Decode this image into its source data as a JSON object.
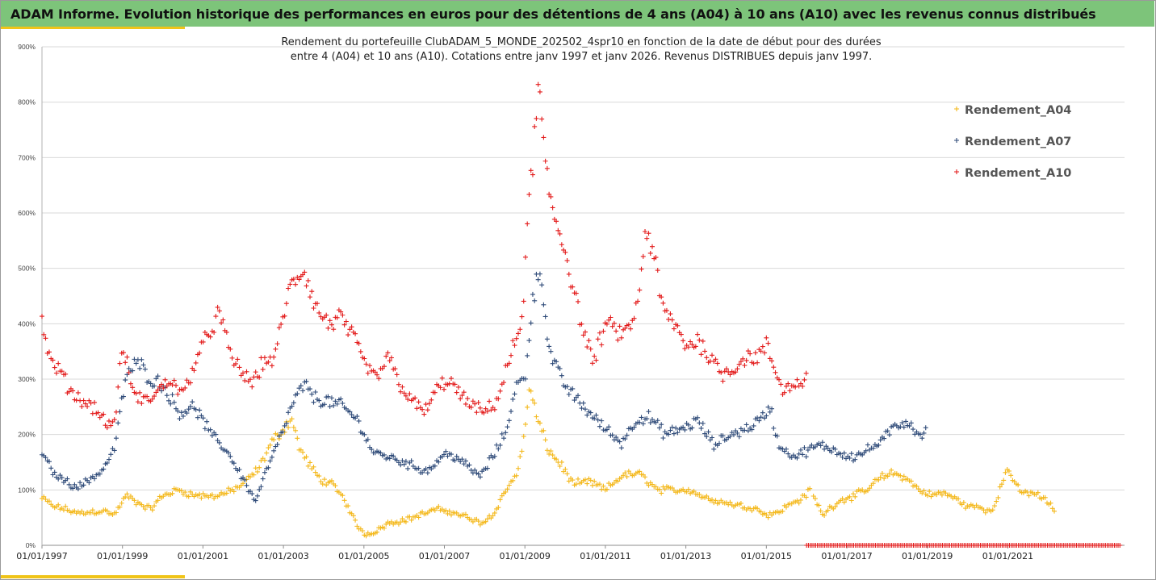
{
  "header": {
    "title": "ADAM Informe. Evolution historique des performances en euros pour des détentions de 4 ans (A04) à 10 ans (A10) avec les revenus connus distribués"
  },
  "colors": {
    "header_bg": "#7dc47a",
    "accent": "#f0c419",
    "a04": "#f4b81a",
    "a07": "#2e4a78",
    "a10": "#e31b1b"
  },
  "chart_data": {
    "type": "scatter",
    "title_line1": "Rendement du portefeuille ClubADAM_5_MONDE_202502_4spr10  en fonction de la date de début pour des durées",
    "title_line2": "entre 4 (A04) et 10 ans (A10). Cotations entre janv 1997 et janv 2026. Revenus DISTRIBUES depuis janv 1997.",
    "xlabel": "",
    "ylabel": "",
    "xlim": [
      1997.0,
      2023.9
    ],
    "ylim": [
      0,
      900
    ],
    "y_ticks": [
      0,
      100,
      200,
      300,
      400,
      500,
      600,
      700,
      800,
      900
    ],
    "y_tick_labels": [
      "0%",
      "100%",
      "200%",
      "300%",
      "400%",
      "500%",
      "600%",
      "700%",
      "800%",
      "900%"
    ],
    "x_ticks": [
      1997,
      1999,
      2001,
      2003,
      2005,
      2007,
      2009,
      2011,
      2013,
      2015,
      2017,
      2019,
      2021
    ],
    "x_tick_labels": [
      "01/01/1997",
      "01/01/1999",
      "01/01/2001",
      "01/01/2003",
      "01/01/2005",
      "01/01/2007",
      "01/01/2009",
      "01/01/2011",
      "01/01/2013",
      "01/01/2015",
      "01/01/2017",
      "01/01/2019",
      "01/01/2021"
    ],
    "legend_position": "right",
    "grid": "horizontal",
    "marker": "+",
    "series": [
      {
        "name": "Rendement_A04",
        "color": "#f4b81a",
        "x": [
          1997.0,
          1997.3,
          1997.6,
          1997.9,
          1998.2,
          1998.5,
          1998.8,
          1999.1,
          1999.4,
          1999.7,
          2000.0,
          2000.4,
          2000.8,
          2001.2,
          2001.6,
          2002.0,
          2002.4,
          2002.7,
          2003.0,
          2003.2,
          2003.4,
          2003.6,
          2003.9,
          2004.2,
          2004.5,
          2004.8,
          2005.0,
          2005.3,
          2005.6,
          2006.0,
          2006.4,
          2006.8,
          2007.2,
          2007.6,
          2007.9,
          2008.2,
          2008.5,
          2008.8,
          2009.0,
          2009.1,
          2009.3,
          2009.6,
          2009.9,
          2010.2,
          2010.6,
          2011.0,
          2011.4,
          2011.8,
          2012.0,
          2012.3,
          2012.7,
          2013.1,
          2013.5,
          2013.9,
          2014.3,
          2014.7,
          2015.0,
          2015.3,
          2015.6,
          2015.9,
          2016.1,
          2016.4,
          2016.8,
          2017.2,
          2017.5,
          2017.8,
          2018.1,
          2018.4,
          2018.8,
          2019.1,
          2019.4,
          2019.8,
          2020.0,
          2020.2,
          2020.4,
          2020.6,
          2021.0,
          2021.3,
          2021.6,
          2021.9,
          2022.2
        ],
        "values": [
          85,
          70,
          65,
          58,
          60,
          63,
          55,
          90,
          75,
          65,
          90,
          100,
          90,
          88,
          95,
          110,
          140,
          185,
          210,
          230,
          175,
          150,
          120,
          110,
          85,
          40,
          20,
          25,
          40,
          45,
          55,
          65,
          60,
          50,
          40,
          55,
          95,
          130,
          200,
          290,
          230,
          170,
          145,
          110,
          115,
          100,
          125,
          130,
          120,
          100,
          100,
          100,
          85,
          78,
          72,
          68,
          55,
          60,
          75,
          85,
          100,
          55,
          80,
          90,
          100,
          120,
          130,
          125,
          100,
          90,
          95,
          80,
          70,
          70,
          65,
          60,
          140,
          95,
          95,
          85,
          60
        ],
        "gap_after": [
          60,
          75
        ]
      },
      {
        "name": "Rendement_A07",
        "color": "#2e4a78",
        "x": [
          1997.0,
          1997.3,
          1997.6,
          1997.9,
          1998.2,
          1998.5,
          1998.8,
          1999.1,
          1999.4,
          1999.7,
          2000.0,
          2000.4,
          2000.8,
          2001.2,
          2001.6,
          2002.0,
          2002.3,
          2002.6,
          2002.9,
          2003.2,
          2003.5,
          2003.8,
          2004.1,
          2004.5,
          2004.9,
          2005.2,
          2005.6,
          2006.0,
          2006.3,
          2006.6,
          2007.0,
          2007.3,
          2007.6,
          2007.9,
          2008.2,
          2008.5,
          2008.8,
          2009.0,
          2009.2,
          2009.4,
          2009.6,
          2009.9,
          2010.2,
          2010.6,
          2011.0,
          2011.4,
          2011.8,
          2012.1,
          2012.5,
          2012.9,
          2013.3,
          2013.7,
          2014.1,
          2014.5,
          2014.9,
          2015.1,
          2015.3,
          2015.7,
          2016.0,
          2016.3,
          2016.6,
          2016.9,
          2017.2,
          2017.6,
          2017.9,
          2018.2,
          2018.5,
          2018.8,
          2019.0
        ],
        "values": [
          165,
          130,
          115,
          105,
          120,
          135,
          175,
          310,
          330,
          300,
          290,
          240,
          250,
          200,
          170,
          120,
          80,
          140,
          190,
          250,
          290,
          265,
          260,
          250,
          220,
          170,
          160,
          150,
          140,
          135,
          165,
          160,
          140,
          125,
          160,
          200,
          290,
          300,
          450,
          500,
          350,
          300,
          270,
          240,
          210,
          185,
          230,
          230,
          200,
          210,
          225,
          180,
          200,
          210,
          230,
          250,
          180,
          160,
          170,
          180,
          175,
          165,
          160,
          175,
          190,
          215,
          225,
          200,
          205
        ]
      },
      {
        "name": "Rendement_A10",
        "color": "#e31b1b",
        "x": [
          1997.0,
          1997.2,
          1997.4,
          1997.7,
          1998.0,
          1998.3,
          1998.6,
          1998.8,
          1999.0,
          1999.3,
          1999.6,
          1999.9,
          2000.2,
          2000.5,
          2000.8,
          2001.0,
          2001.2,
          2001.4,
          2001.7,
          2002.0,
          2002.2,
          2002.5,
          2002.8,
          2003.0,
          2003.2,
          2003.5,
          2003.8,
          2004.1,
          2004.4,
          2004.7,
          2005.0,
          2005.3,
          2005.6,
          2005.9,
          2006.2,
          2006.5,
          2006.8,
          2007.1,
          2007.4,
          2007.7,
          2008.0,
          2008.3,
          2008.6,
          2008.9,
          2009.0,
          2009.1,
          2009.2,
          2009.35,
          2009.5,
          2009.7,
          2009.9,
          2010.1,
          2010.4,
          2010.7,
          2011.0,
          2011.2,
          2011.5,
          2011.8,
          2012.0,
          2012.2,
          2012.4,
          2012.7,
          2013.0,
          2013.3,
          2013.6,
          2013.9,
          2014.2,
          2014.5,
          2014.8,
          2015.0,
          2015.2,
          2015.4,
          2015.7,
          2016.0
        ],
        "values": [
          410,
          330,
          320,
          280,
          260,
          250,
          220,
          220,
          360,
          270,
          260,
          280,
          300,
          270,
          330,
          360,
          390,
          420,
          340,
          310,
          290,
          330,
          340,
          420,
          470,
          500,
          430,
          400,
          410,
          380,
          330,
          300,
          340,
          290,
          260,
          240,
          280,
          300,
          270,
          250,
          240,
          260,
          330,
          400,
          480,
          620,
          700,
          830,
          680,
          600,
          560,
          500,
          400,
          330,
          400,
          390,
          380,
          430,
          570,
          530,
          430,
          400,
          360,
          370,
          340,
          310,
          320,
          340,
          340,
          360,
          320,
          280,
          290,
          300
        ],
        "flat_zero_from": 2016.0,
        "flat_zero_to": 2023.8
      }
    ]
  }
}
